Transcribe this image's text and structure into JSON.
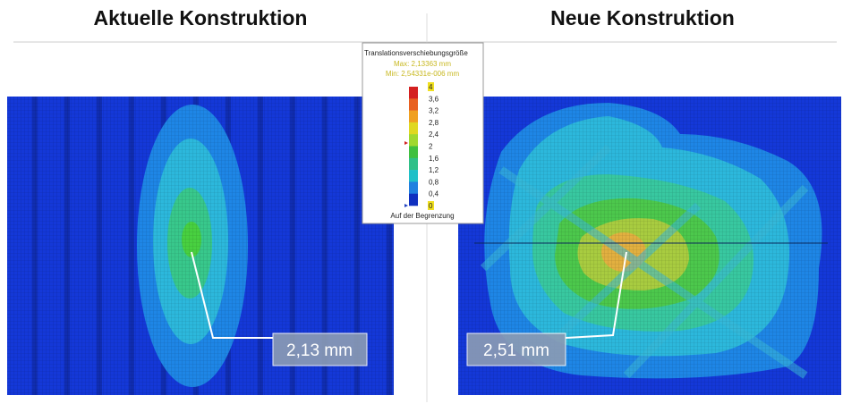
{
  "left": {
    "title": "Aktuelle Konstruktion",
    "callout": "2,13 mm"
  },
  "right": {
    "title": "Neue Konstruktion",
    "callout": "2,51 mm"
  },
  "legend": {
    "title": "Translationsverschiebungsgröße",
    "max": "Max: 2,13363 mm",
    "min": "Min: 2,54331e-006 mm",
    "ticks": [
      "4",
      "3,6",
      "3,2",
      "2,8",
      "2,4",
      "2",
      "1,6",
      "1,2",
      "0,8",
      "0,4",
      "0"
    ],
    "footer": "Auf der Begrenzung"
  }
}
